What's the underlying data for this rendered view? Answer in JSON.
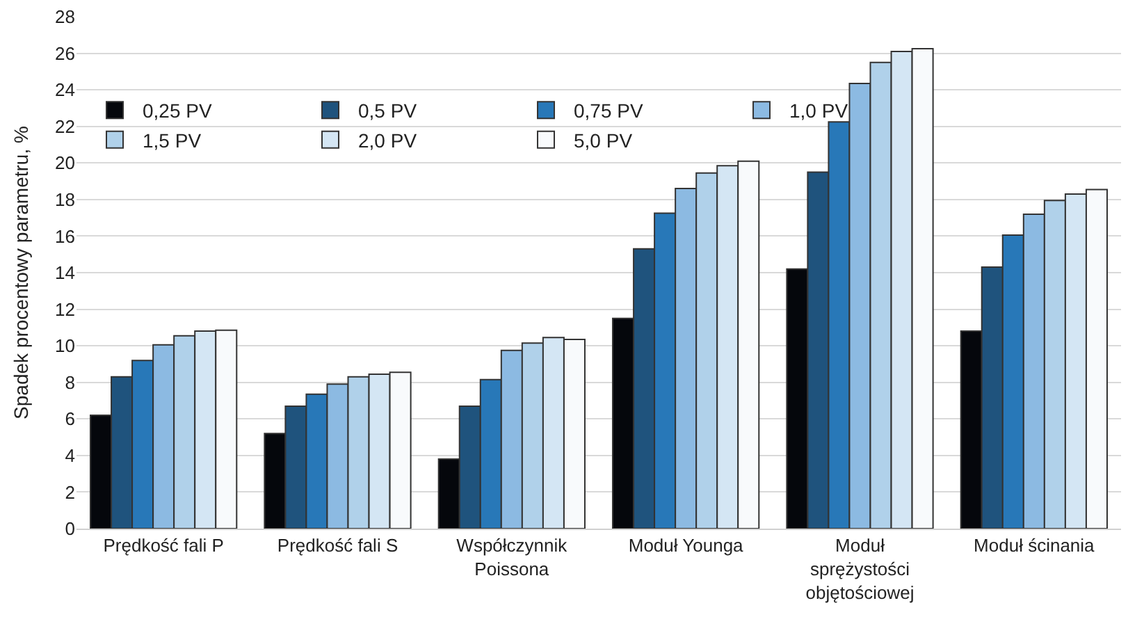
{
  "chart_data": {
    "type": "bar",
    "ylabel": "Spadek procentowy parametru, %",
    "categories": [
      "Prędkość fali P",
      "Prędkość fali S",
      "Współczynnik\nPoissona",
      "Moduł Younga",
      "Moduł\nsprężystości\nobjętościowej",
      "Moduł ścinania"
    ],
    "series": [
      {
        "name": "0,25 PV",
        "color": "#05070c",
        "values": [
          6.2,
          5.2,
          3.8,
          11.5,
          14.2,
          10.8
        ]
      },
      {
        "name": "0,5 PV",
        "color": "#1f537d",
        "values": [
          8.3,
          6.7,
          6.7,
          15.3,
          19.5,
          14.3
        ]
      },
      {
        "name": "0,75 PV",
        "color": "#2878b8",
        "values": [
          9.2,
          7.35,
          8.15,
          17.25,
          22.25,
          16.05
        ]
      },
      {
        "name": "1,0 PV",
        "color": "#8cbae2",
        "values": [
          10.05,
          7.9,
          9.75,
          18.6,
          24.35,
          17.2
        ]
      },
      {
        "name": "1,5 PV",
        "color": "#b0d1ea",
        "values": [
          10.55,
          8.3,
          10.15,
          19.45,
          25.5,
          17.95
        ]
      },
      {
        "name": "2,0 PV",
        "color": "#d4e6f4",
        "values": [
          10.8,
          8.45,
          10.45,
          19.85,
          26.1,
          18.3
        ]
      },
      {
        "name": "5,0 PV",
        "color": "#f8fafc",
        "values": [
          10.85,
          8.55,
          10.35,
          20.1,
          26.25,
          18.55
        ]
      }
    ],
    "ylim": [
      0,
      28
    ],
    "yticks": [
      0,
      2,
      4,
      6,
      8,
      10,
      12,
      14,
      16,
      18,
      20,
      22,
      24,
      26,
      28
    ],
    "grid": "y",
    "legend": "top left"
  }
}
